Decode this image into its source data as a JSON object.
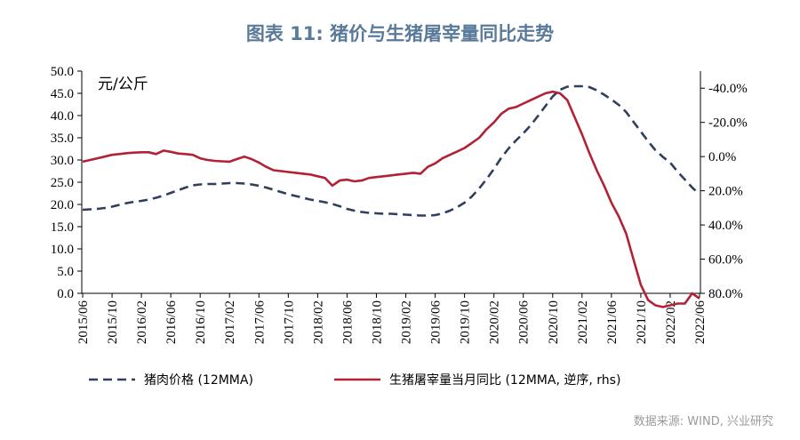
{
  "chart_data": {
    "type": "line",
    "title": "图表 11:  猪价与生猪屠宰量同比走势",
    "y_unit_label": "元/公斤",
    "left_axis": {
      "ylim": [
        0,
        50
      ],
      "ticks": [
        "0.0",
        "5.0",
        "10.0",
        "15.0",
        "20.0",
        "25.0",
        "30.0",
        "35.0",
        "40.0",
        "45.0",
        "50.0"
      ]
    },
    "right_axis": {
      "ylim": [
        -50,
        80
      ],
      "reversed": true,
      "ticks": [
        "-40.0%",
        "-20.0%",
        "0.0%",
        "20.0%",
        "40.0%",
        "60.0%",
        "80.0%"
      ]
    },
    "x_tick_labels": [
      "2015/06",
      "2015/10",
      "2016/02",
      "2016/06",
      "2016/10",
      "2017/02",
      "2017/06",
      "2017/10",
      "2018/02",
      "2018/06",
      "2018/10",
      "2019/02",
      "2019/06",
      "2019/10",
      "2020/02",
      "2020/06",
      "2020/10",
      "2021/02",
      "2021/06",
      "2021/10",
      "2022/02",
      "2022/06"
    ],
    "x_months": [
      "2015/06",
      "2015/07",
      "2015/08",
      "2015/09",
      "2015/10",
      "2015/11",
      "2015/12",
      "2016/01",
      "2016/02",
      "2016/03",
      "2016/04",
      "2016/05",
      "2016/06",
      "2016/07",
      "2016/08",
      "2016/09",
      "2016/10",
      "2016/11",
      "2016/12",
      "2017/01",
      "2017/02",
      "2017/03",
      "2017/04",
      "2017/05",
      "2017/06",
      "2017/07",
      "2017/08",
      "2017/09",
      "2017/10",
      "2017/11",
      "2017/12",
      "2018/01",
      "2018/02",
      "2018/03",
      "2018/04",
      "2018/05",
      "2018/06",
      "2018/07",
      "2018/08",
      "2018/09",
      "2018/10",
      "2018/11",
      "2018/12",
      "2019/01",
      "2019/02",
      "2019/03",
      "2019/04",
      "2019/05",
      "2019/06",
      "2019/07",
      "2019/08",
      "2019/09",
      "2019/10",
      "2019/11",
      "2019/12",
      "2020/01",
      "2020/02",
      "2020/03",
      "2020/04",
      "2020/05",
      "2020/06",
      "2020/07",
      "2020/08",
      "2020/09",
      "2020/10",
      "2020/11",
      "2020/12",
      "2021/01",
      "2021/02",
      "2021/03",
      "2021/04",
      "2021/05",
      "2021/06",
      "2021/07",
      "2021/08",
      "2021/09",
      "2021/10",
      "2021/11",
      "2021/12",
      "2022/01",
      "2022/02",
      "2022/03",
      "2022/04",
      "2022/05",
      "2022/06"
    ],
    "series": [
      {
        "name": "猪肉价格 (12MMA)",
        "axis": "left",
        "style": "dashed",
        "color": "#2f3f5c",
        "values": [
          18.8,
          18.9,
          19.0,
          19.2,
          19.5,
          19.9,
          20.3,
          20.6,
          20.8,
          21.1,
          21.5,
          22.0,
          22.6,
          23.2,
          23.8,
          24.3,
          24.5,
          24.6,
          24.6,
          24.7,
          24.8,
          24.8,
          24.7,
          24.5,
          24.2,
          23.8,
          23.3,
          22.8,
          22.3,
          21.9,
          21.5,
          21.1,
          20.8,
          20.5,
          20.1,
          19.6,
          19.0,
          18.6,
          18.3,
          18.1,
          18.0,
          17.9,
          17.9,
          17.8,
          17.7,
          17.6,
          17.5,
          17.5,
          17.6,
          18.0,
          18.6,
          19.4,
          20.4,
          21.8,
          23.6,
          25.7,
          28.0,
          30.5,
          32.6,
          34.4,
          36.0,
          37.8,
          39.9,
          42.1,
          44.3,
          45.8,
          46.5,
          46.6,
          46.6,
          46.4,
          45.7,
          44.7,
          43.6,
          42.4,
          40.8,
          38.6,
          36.4,
          34.2,
          32.2,
          30.7,
          29.4,
          27.4,
          25.6,
          23.8,
          22.3
        ]
      },
      {
        "name": "生猪屠宰量当月同比 (12MMA, 逆序, rhs)",
        "axis": "right",
        "style": "solid",
        "color": "#b22234",
        "values": [
          3.0,
          2.0,
          1.0,
          0.0,
          -1.0,
          -1.5,
          -2.0,
          -2.3,
          -2.5,
          -2.5,
          -1.5,
          -3.5,
          -2.8,
          -1.8,
          -1.5,
          -1.0,
          1.0,
          2.0,
          2.5,
          2.8,
          3.0,
          1.5,
          0.0,
          1.5,
          3.5,
          6.0,
          8.0,
          8.5,
          9.0,
          9.5,
          10.0,
          10.5,
          11.5,
          12.5,
          17.0,
          14.0,
          13.5,
          14.5,
          14.0,
          12.5,
          12.0,
          11.5,
          11.0,
          10.5,
          10.0,
          9.5,
          10.0,
          6.0,
          4.0,
          1.0,
          -1.0,
          -3.0,
          -5.0,
          -8.0,
          -11.0,
          -16.0,
          -20.0,
          -25.0,
          -28.0,
          -29.0,
          -31.0,
          -33.0,
          -35.0,
          -37.0,
          -38.0,
          -37.0,
          -33.0,
          -23.0,
          -13.0,
          -2.0,
          8.0,
          17.0,
          27.0,
          35.0,
          45.0,
          60.0,
          75.0,
          84.0,
          87.0,
          88.0,
          87.0,
          86.0,
          86.0,
          80.0,
          83.0
        ]
      }
    ],
    "legend_position": "bottom"
  },
  "source": "数据来源: WIND, 兴业研究"
}
